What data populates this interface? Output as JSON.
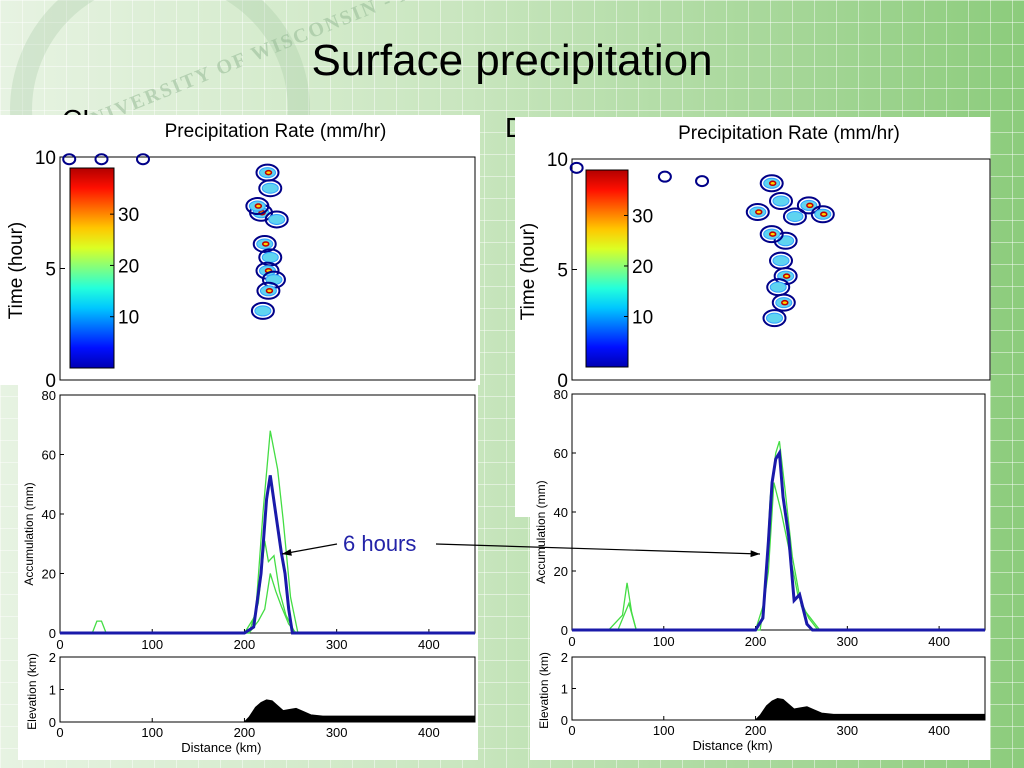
{
  "slide": {
    "title": "Surface precipitation",
    "left_tag": "CL",
    "right_tag": "DL",
    "annotation": "6 hours",
    "seal_text": "UNIVERSITY OF WISCONSIN - MADISON"
  },
  "colors": {
    "accum_main": "#1a1aaa",
    "accum_thin": "#44dd44",
    "contour_blue": "#000088"
  },
  "chart_data": [
    {
      "panel": "CL",
      "type": "heatmap",
      "title": "Precipitation Rate (mm/hr)",
      "ylabel": "Time (hour)",
      "yticks": [
        0,
        5,
        10
      ],
      "colorbar_ticks": [
        10,
        20,
        30
      ],
      "ylim": [
        0,
        10
      ],
      "xlim": [
        0,
        450
      ],
      "blobs": [
        {
          "x": 225,
          "t": 9.3
        },
        {
          "x": 228,
          "t": 8.6
        },
        {
          "x": 218,
          "t": 7.5
        },
        {
          "x": 235,
          "t": 7.2
        },
        {
          "x": 222,
          "t": 6.1
        },
        {
          "x": 228,
          "t": 5.5
        },
        {
          "x": 225,
          "t": 4.9
        },
        {
          "x": 232,
          "t": 4.5
        },
        {
          "x": 226,
          "t": 4.0
        },
        {
          "x": 220,
          "t": 3.1
        },
        {
          "x": 214,
          "t": 7.8
        },
        {
          "x": 10,
          "t": 9.9
        },
        {
          "x": 45,
          "t": 9.9
        },
        {
          "x": 90,
          "t": 9.9
        }
      ]
    },
    {
      "panel": "CL",
      "type": "line",
      "ylabel": "Accumulation (mm)",
      "xlim": [
        0,
        450
      ],
      "ylim": [
        0,
        80
      ],
      "yticks": [
        0,
        20,
        40,
        60,
        80
      ],
      "xticks": [
        0,
        100,
        200,
        300,
        400
      ],
      "series": [
        {
          "role": "main",
          "x": [
            0,
            200,
            210,
            218,
            224,
            228,
            234,
            240,
            244,
            248,
            252,
            260,
            450
          ],
          "y": [
            0,
            0,
            2,
            20,
            45,
            53,
            40,
            27,
            20,
            8,
            0,
            0,
            0
          ]
        },
        {
          "role": "thin",
          "x": [
            0,
            35,
            40,
            45,
            50,
            200,
            212,
            220,
            228,
            236,
            242,
            250,
            258,
            450
          ],
          "y": [
            0,
            0,
            4,
            4,
            0,
            0,
            6,
            40,
            68,
            55,
            38,
            12,
            0,
            0
          ]
        },
        {
          "role": "thin",
          "x": [
            0,
            205,
            215,
            222,
            226,
            232,
            238,
            245,
            255,
            450
          ],
          "y": [
            0,
            0,
            10,
            31,
            24,
            26,
            14,
            6,
            0,
            0
          ]
        },
        {
          "role": "thin",
          "x": [
            0,
            205,
            215,
            222,
            228,
            234,
            240,
            248,
            256,
            450
          ],
          "y": [
            0,
            0,
            4,
            8,
            20,
            14,
            9,
            3,
            0,
            0
          ]
        }
      ]
    },
    {
      "panel": "CL",
      "type": "area",
      "ylabel": "Elevation (km)",
      "xlabel": "Distance (km)",
      "xlim": [
        0,
        450
      ],
      "ylim": [
        0,
        2
      ],
      "yticks": [
        0,
        1,
        2
      ],
      "xticks": [
        0,
        100,
        200,
        300,
        400
      ],
      "x": [
        0,
        200,
        205,
        212,
        218,
        224,
        230,
        236,
        242,
        248,
        256,
        264,
        272,
        285,
        450
      ],
      "y": [
        0,
        0,
        0.15,
        0.45,
        0.6,
        0.68,
        0.65,
        0.5,
        0.35,
        0.38,
        0.42,
        0.32,
        0.22,
        0.18,
        0.18
      ]
    },
    {
      "panel": "DL",
      "type": "heatmap",
      "title": "Precipitation Rate (mm/hr)",
      "ylabel": "Time (hour)",
      "yticks": [
        0,
        5,
        10
      ],
      "colorbar_ticks": [
        10,
        20,
        30
      ],
      "ylim": [
        0,
        10
      ],
      "xlim": [
        0,
        450
      ],
      "blobs": [
        {
          "x": 215,
          "t": 8.9
        },
        {
          "x": 225,
          "t": 8.1
        },
        {
          "x": 200,
          "t": 7.6
        },
        {
          "x": 240,
          "t": 7.4
        },
        {
          "x": 255,
          "t": 7.9
        },
        {
          "x": 230,
          "t": 6.3
        },
        {
          "x": 215,
          "t": 6.6
        },
        {
          "x": 225,
          "t": 5.4
        },
        {
          "x": 230,
          "t": 4.7
        },
        {
          "x": 222,
          "t": 4.2
        },
        {
          "x": 228,
          "t": 3.5
        },
        {
          "x": 218,
          "t": 2.8
        },
        {
          "x": 270,
          "t": 7.5
        },
        {
          "x": 5,
          "t": 9.6
        },
        {
          "x": 100,
          "t": 9.2
        },
        {
          "x": 140,
          "t": 9.0
        }
      ]
    },
    {
      "panel": "DL",
      "type": "line",
      "ylabel": "Accumulation (mm)",
      "xlim": [
        0,
        450
      ],
      "ylim": [
        0,
        80
      ],
      "yticks": [
        0,
        20,
        40,
        60,
        80
      ],
      "xticks": [
        0,
        100,
        200,
        300,
        400
      ],
      "series": [
        {
          "role": "main",
          "x": [
            0,
            200,
            208,
            214,
            218,
            222,
            226,
            230,
            236,
            242,
            248,
            256,
            262,
            450
          ],
          "y": [
            0,
            0,
            4,
            30,
            50,
            58,
            60,
            45,
            32,
            10,
            12,
            2,
            0,
            0
          ]
        },
        {
          "role": "thin",
          "x": [
            0,
            40,
            55,
            60,
            65,
            70,
            200,
            210,
            216,
            222,
            226,
            232,
            240,
            250,
            260,
            270,
            450
          ],
          "y": [
            0,
            0,
            5,
            16,
            6,
            0,
            0,
            10,
            45,
            60,
            64,
            48,
            25,
            8,
            4,
            0,
            0
          ]
        },
        {
          "role": "thin",
          "x": [
            0,
            50,
            58,
            62,
            70,
            205,
            214,
            220,
            228,
            236,
            246,
            258,
            268,
            450
          ],
          "y": [
            0,
            0,
            6,
            9,
            0,
            0,
            20,
            50,
            40,
            28,
            12,
            4,
            0,
            0
          ]
        }
      ]
    },
    {
      "panel": "DL",
      "type": "area",
      "ylabel": "Elevation (km)",
      "xlabel": "Distance (km)",
      "xlim": [
        0,
        450
      ],
      "ylim": [
        0,
        2
      ],
      "yticks": [
        0,
        1,
        2
      ],
      "xticks": [
        0,
        100,
        200,
        300,
        400
      ],
      "x": [
        0,
        200,
        205,
        212,
        218,
        224,
        230,
        236,
        242,
        248,
        256,
        264,
        272,
        285,
        450
      ],
      "y": [
        0,
        0,
        0.15,
        0.45,
        0.6,
        0.68,
        0.65,
        0.5,
        0.35,
        0.38,
        0.42,
        0.32,
        0.22,
        0.18,
        0.18
      ]
    }
  ]
}
